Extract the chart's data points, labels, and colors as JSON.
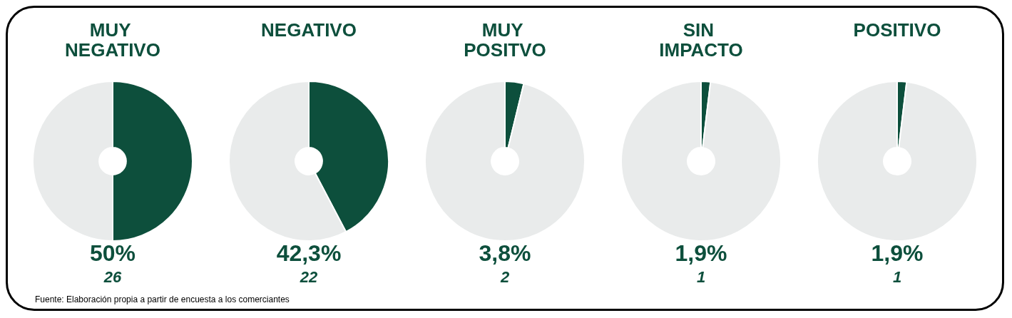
{
  "chart_data": [
    {
      "type": "donut",
      "title": "MUY NEGATIVO",
      "categories": [
        null,
        null
      ],
      "values": [
        50,
        50
      ],
      "colors": [
        "#0d4f3c",
        "#e9ebeb"
      ],
      "annotations": [
        "50%",
        "26",
        "Fuente: Elaboración propia a partir de encuesta a los comerciantes"
      ]
    },
    {
      "type": "donut",
      "title": "NEGATIVO",
      "categories": [
        null,
        null
      ],
      "values": [
        42.3,
        57.7
      ],
      "colors": [
        "#0d4f3c",
        "#e9ebeb"
      ],
      "annotations": [
        "42,3%",
        "22"
      ]
    },
    {
      "type": "donut",
      "title": "MUY POSITVO",
      "categories": [
        null,
        null
      ],
      "values": [
        3.8,
        96.2
      ],
      "colors": [
        "#0d4f3c",
        "#e9ebeb"
      ],
      "annotations": [
        "3,8%",
        "2"
      ]
    },
    {
      "type": "donut",
      "title": "SIN IMPACTO",
      "categories": [
        null,
        null
      ],
      "values": [
        1.9,
        98.1
      ],
      "colors": [
        "#0d4f3c",
        "#e9ebeb"
      ],
      "annotations": [
        "1,9%",
        "1"
      ]
    },
    {
      "type": "donut",
      "title": "POSITIVO",
      "categories": [
        null,
        null
      ],
      "values": [
        1.9,
        98.1
      ],
      "colors": [
        "#0d4f3c",
        "#e9ebeb"
      ],
      "annotations": [
        "1,9%",
        "1"
      ]
    }
  ]
}
